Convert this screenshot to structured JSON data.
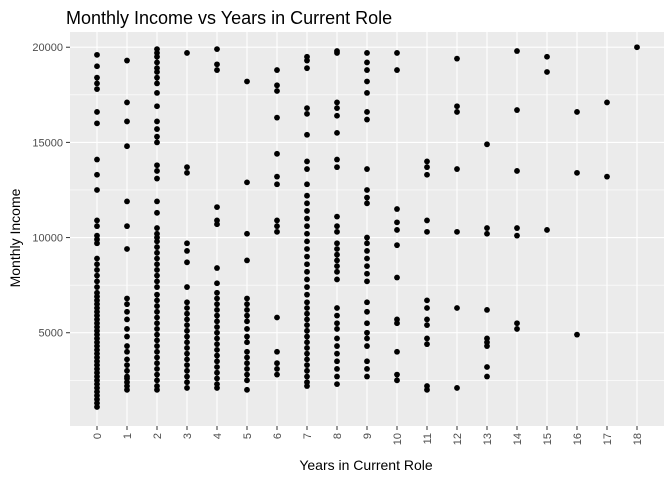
{
  "chart_data": {
    "type": "scatter",
    "title": "Monthly Income vs Years in Current Role",
    "xlabel": "Years in Current Role",
    "ylabel": "Monthly Income",
    "xlim": [
      -0.9,
      18.9
    ],
    "ylim": [
      100,
      20800
    ],
    "x_ticks": [
      0,
      1,
      2,
      3,
      4,
      5,
      6,
      7,
      8,
      9,
      10,
      11,
      12,
      13,
      14,
      15,
      16,
      17,
      18
    ],
    "x_tick_labels": [
      "0",
      "1",
      "2",
      "3",
      "4",
      "5",
      "6",
      "7",
      "8",
      "9",
      "10",
      "11",
      "12",
      "13",
      "14",
      "15",
      "16",
      "17",
      "18"
    ],
    "y_ticks": [
      5000,
      10000,
      15000,
      20000
    ],
    "y_tick_labels": [
      "5000",
      "10000",
      "15000",
      "20000"
    ],
    "grid": true,
    "panel_background": "#ebebeb",
    "grid_color": "#ffffff",
    "point_color": "#000000",
    "points": [
      [
        0,
        19600
      ],
      [
        0,
        19000
      ],
      [
        0,
        18400
      ],
      [
        0,
        18100
      ],
      [
        0,
        17800
      ],
      [
        0,
        16600
      ],
      [
        0,
        16000
      ],
      [
        0,
        14100
      ],
      [
        0,
        13300
      ],
      [
        0,
        12500
      ],
      [
        0,
        10900
      ],
      [
        0,
        10600
      ],
      [
        0,
        10100
      ],
      [
        0,
        9900
      ],
      [
        0,
        9700
      ],
      [
        0,
        8900
      ],
      [
        0,
        8600
      ],
      [
        0,
        8300
      ],
      [
        0,
        8000
      ],
      [
        0,
        7700
      ],
      [
        0,
        7400
      ],
      [
        0,
        7100
      ],
      [
        0,
        6900
      ],
      [
        0,
        6700
      ],
      [
        0,
        6500
      ],
      [
        0,
        6300
      ],
      [
        0,
        6100
      ],
      [
        0,
        5900
      ],
      [
        0,
        5700
      ],
      [
        0,
        5500
      ],
      [
        0,
        5300
      ],
      [
        0,
        5100
      ],
      [
        0,
        4900
      ],
      [
        0,
        4700
      ],
      [
        0,
        4500
      ],
      [
        0,
        4300
      ],
      [
        0,
        4100
      ],
      [
        0,
        3900
      ],
      [
        0,
        3700
      ],
      [
        0,
        3500
      ],
      [
        0,
        3300
      ],
      [
        0,
        3100
      ],
      [
        0,
        2900
      ],
      [
        0,
        2700
      ],
      [
        0,
        2500
      ],
      [
        0,
        2300
      ],
      [
        0,
        2100
      ],
      [
        0,
        1900
      ],
      [
        0,
        1700
      ],
      [
        0,
        1500
      ],
      [
        0,
        1300
      ],
      [
        0,
        1100
      ],
      [
        1,
        19300
      ],
      [
        1,
        17100
      ],
      [
        1,
        16100
      ],
      [
        1,
        14800
      ],
      [
        1,
        11900
      ],
      [
        1,
        10600
      ],
      [
        1,
        9400
      ],
      [
        1,
        6800
      ],
      [
        1,
        6500
      ],
      [
        1,
        6100
      ],
      [
        1,
        5700
      ],
      [
        1,
        5200
      ],
      [
        1,
        4800
      ],
      [
        1,
        4300
      ],
      [
        1,
        4000
      ],
      [
        1,
        3600
      ],
      [
        1,
        3300
      ],
      [
        1,
        3000
      ],
      [
        1,
        2700
      ],
      [
        1,
        2600
      ],
      [
        1,
        2400
      ],
      [
        1,
        2200
      ],
      [
        1,
        2000
      ],
      [
        2,
        19900
      ],
      [
        2,
        19700
      ],
      [
        2,
        19500
      ],
      [
        2,
        19200
      ],
      [
        2,
        18900
      ],
      [
        2,
        18700
      ],
      [
        2,
        18400
      ],
      [
        2,
        18100
      ],
      [
        2,
        17600
      ],
      [
        2,
        16900
      ],
      [
        2,
        16100
      ],
      [
        2,
        15700
      ],
      [
        2,
        15300
      ],
      [
        2,
        15000
      ],
      [
        2,
        13800
      ],
      [
        2,
        13500
      ],
      [
        2,
        13100
      ],
      [
        2,
        11900
      ],
      [
        2,
        11300
      ],
      [
        2,
        10500
      ],
      [
        2,
        10200
      ],
      [
        2,
        10000
      ],
      [
        2,
        9800
      ],
      [
        2,
        9500
      ],
      [
        2,
        9200
      ],
      [
        2,
        8900
      ],
      [
        2,
        8600
      ],
      [
        2,
        8300
      ],
      [
        2,
        8000
      ],
      [
        2,
        7700
      ],
      [
        2,
        7400
      ],
      [
        2,
        7000
      ],
      [
        2,
        6700
      ],
      [
        2,
        6400
      ],
      [
        2,
        6100
      ],
      [
        2,
        5800
      ],
      [
        2,
        5500
      ],
      [
        2,
        5200
      ],
      [
        2,
        4900
      ],
      [
        2,
        4600
      ],
      [
        2,
        4300
      ],
      [
        2,
        4000
      ],
      [
        2,
        3700
      ],
      [
        2,
        3400
      ],
      [
        2,
        3100
      ],
      [
        2,
        2800
      ],
      [
        2,
        2500
      ],
      [
        2,
        2200
      ],
      [
        2,
        2000
      ],
      [
        3,
        19700
      ],
      [
        3,
        13700
      ],
      [
        3,
        13400
      ],
      [
        3,
        9700
      ],
      [
        3,
        9300
      ],
      [
        3,
        8700
      ],
      [
        3,
        7400
      ],
      [
        3,
        6600
      ],
      [
        3,
        6300
      ],
      [
        3,
        6000
      ],
      [
        3,
        5700
      ],
      [
        3,
        5400
      ],
      [
        3,
        5100
      ],
      [
        3,
        4800
      ],
      [
        3,
        4500
      ],
      [
        3,
        4200
      ],
      [
        3,
        3900
      ],
      [
        3,
        3600
      ],
      [
        3,
        3300
      ],
      [
        3,
        3000
      ],
      [
        3,
        2700
      ],
      [
        3,
        2400
      ],
      [
        3,
        2100
      ],
      [
        4,
        19900
      ],
      [
        4,
        19100
      ],
      [
        4,
        18800
      ],
      [
        4,
        11600
      ],
      [
        4,
        10900
      ],
      [
        4,
        10700
      ],
      [
        4,
        8400
      ],
      [
        4,
        7600
      ],
      [
        4,
        7100
      ],
      [
        4,
        6800
      ],
      [
        4,
        6500
      ],
      [
        4,
        6200
      ],
      [
        4,
        5900
      ],
      [
        4,
        5600
      ],
      [
        4,
        5300
      ],
      [
        4,
        5000
      ],
      [
        4,
        4700
      ],
      [
        4,
        4400
      ],
      [
        4,
        4100
      ],
      [
        4,
        3800
      ],
      [
        4,
        3500
      ],
      [
        4,
        3200
      ],
      [
        4,
        2900
      ],
      [
        4,
        2600
      ],
      [
        4,
        2300
      ],
      [
        4,
        2100
      ],
      [
        5,
        18200
      ],
      [
        5,
        12900
      ],
      [
        5,
        10200
      ],
      [
        5,
        8800
      ],
      [
        5,
        6800
      ],
      [
        5,
        6500
      ],
      [
        5,
        6200
      ],
      [
        5,
        5900
      ],
      [
        5,
        5600
      ],
      [
        5,
        5200
      ],
      [
        5,
        4800
      ],
      [
        5,
        4500
      ],
      [
        5,
        4000
      ],
      [
        5,
        3700
      ],
      [
        5,
        3400
      ],
      [
        5,
        3100
      ],
      [
        5,
        2800
      ],
      [
        5,
        2500
      ],
      [
        5,
        2000
      ],
      [
        6,
        18800
      ],
      [
        6,
        18000
      ],
      [
        6,
        17700
      ],
      [
        6,
        16300
      ],
      [
        6,
        14400
      ],
      [
        6,
        13200
      ],
      [
        6,
        12800
      ],
      [
        6,
        10900
      ],
      [
        6,
        10600
      ],
      [
        6,
        10300
      ],
      [
        6,
        5800
      ],
      [
        6,
        4000
      ],
      [
        6,
        3400
      ],
      [
        6,
        3100
      ],
      [
        6,
        2800
      ],
      [
        7,
        19500
      ],
      [
        7,
        19300
      ],
      [
        7,
        18900
      ],
      [
        7,
        16800
      ],
      [
        7,
        16500
      ],
      [
        7,
        15400
      ],
      [
        7,
        14000
      ],
      [
        7,
        13600
      ],
      [
        7,
        12800
      ],
      [
        7,
        12200
      ],
      [
        7,
        11800
      ],
      [
        7,
        11400
      ],
      [
        7,
        11000
      ],
      [
        7,
        10600
      ],
      [
        7,
        10200
      ],
      [
        7,
        9800
      ],
      [
        7,
        9400
      ],
      [
        7,
        9000
      ],
      [
        7,
        8600
      ],
      [
        7,
        8200
      ],
      [
        7,
        7800
      ],
      [
        7,
        7400
      ],
      [
        7,
        7000
      ],
      [
        7,
        6600
      ],
      [
        7,
        6300
      ],
      [
        7,
        6000
      ],
      [
        7,
        5700
      ],
      [
        7,
        5400
      ],
      [
        7,
        5100
      ],
      [
        7,
        4800
      ],
      [
        7,
        4500
      ],
      [
        7,
        4200
      ],
      [
        7,
        3900
      ],
      [
        7,
        3600
      ],
      [
        7,
        3300
      ],
      [
        7,
        3000
      ],
      [
        7,
        2700
      ],
      [
        7,
        2400
      ],
      [
        7,
        2200
      ],
      [
        8,
        19800
      ],
      [
        8,
        19700
      ],
      [
        8,
        17100
      ],
      [
        8,
        16800
      ],
      [
        8,
        16400
      ],
      [
        8,
        15500
      ],
      [
        8,
        14100
      ],
      [
        8,
        13700
      ],
      [
        8,
        11100
      ],
      [
        8,
        10600
      ],
      [
        8,
        10300
      ],
      [
        8,
        9700
      ],
      [
        8,
        9400
      ],
      [
        8,
        9100
      ],
      [
        8,
        8800
      ],
      [
        8,
        8500
      ],
      [
        8,
        8200
      ],
      [
        8,
        7800
      ],
      [
        8,
        6300
      ],
      [
        8,
        5900
      ],
      [
        8,
        5500
      ],
      [
        8,
        5200
      ],
      [
        8,
        4700
      ],
      [
        8,
        4300
      ],
      [
        8,
        3900
      ],
      [
        8,
        3500
      ],
      [
        8,
        3100
      ],
      [
        8,
        2700
      ],
      [
        8,
        2300
      ],
      [
        9,
        19700
      ],
      [
        9,
        19200
      ],
      [
        9,
        18800
      ],
      [
        9,
        18200
      ],
      [
        9,
        17600
      ],
      [
        9,
        16600
      ],
      [
        9,
        16200
      ],
      [
        9,
        13600
      ],
      [
        9,
        12500
      ],
      [
        9,
        12100
      ],
      [
        9,
        11800
      ],
      [
        9,
        10000
      ],
      [
        9,
        9700
      ],
      [
        9,
        9300
      ],
      [
        9,
        8900
      ],
      [
        9,
        8500
      ],
      [
        9,
        8100
      ],
      [
        9,
        7700
      ],
      [
        9,
        6600
      ],
      [
        9,
        6100
      ],
      [
        9,
        5500
      ],
      [
        9,
        5000
      ],
      [
        9,
        4700
      ],
      [
        9,
        4300
      ],
      [
        9,
        3500
      ],
      [
        9,
        3100
      ],
      [
        9,
        2700
      ],
      [
        10,
        19700
      ],
      [
        10,
        18800
      ],
      [
        10,
        11500
      ],
      [
        10,
        10800
      ],
      [
        10,
        10400
      ],
      [
        10,
        9600
      ],
      [
        10,
        7900
      ],
      [
        10,
        5700
      ],
      [
        10,
        5500
      ],
      [
        10,
        4000
      ],
      [
        10,
        2800
      ],
      [
        10,
        2500
      ],
      [
        11,
        14000
      ],
      [
        11,
        13700
      ],
      [
        11,
        13300
      ],
      [
        11,
        10900
      ],
      [
        11,
        10300
      ],
      [
        11,
        6700
      ],
      [
        11,
        6300
      ],
      [
        11,
        5700
      ],
      [
        11,
        5400
      ],
      [
        11,
        4700
      ],
      [
        11,
        4400
      ],
      [
        11,
        2200
      ],
      [
        11,
        2000
      ],
      [
        12,
        19400
      ],
      [
        12,
        16900
      ],
      [
        12,
        16600
      ],
      [
        12,
        13600
      ],
      [
        12,
        10300
      ],
      [
        12,
        6300
      ],
      [
        12,
        2100
      ],
      [
        13,
        14900
      ],
      [
        13,
        10500
      ],
      [
        13,
        10200
      ],
      [
        13,
        6200
      ],
      [
        13,
        4700
      ],
      [
        13,
        4500
      ],
      [
        13,
        4300
      ],
      [
        13,
        3200
      ],
      [
        13,
        2700
      ],
      [
        14,
        19800
      ],
      [
        14,
        16700
      ],
      [
        14,
        13500
      ],
      [
        14,
        10500
      ],
      [
        14,
        10100
      ],
      [
        14,
        5500
      ],
      [
        14,
        5200
      ],
      [
        15,
        19500
      ],
      [
        15,
        18700
      ],
      [
        15,
        10400
      ],
      [
        16,
        16600
      ],
      [
        16,
        13400
      ],
      [
        16,
        4900
      ],
      [
        17,
        17100
      ],
      [
        17,
        13200
      ],
      [
        18,
        20000
      ]
    ]
  }
}
